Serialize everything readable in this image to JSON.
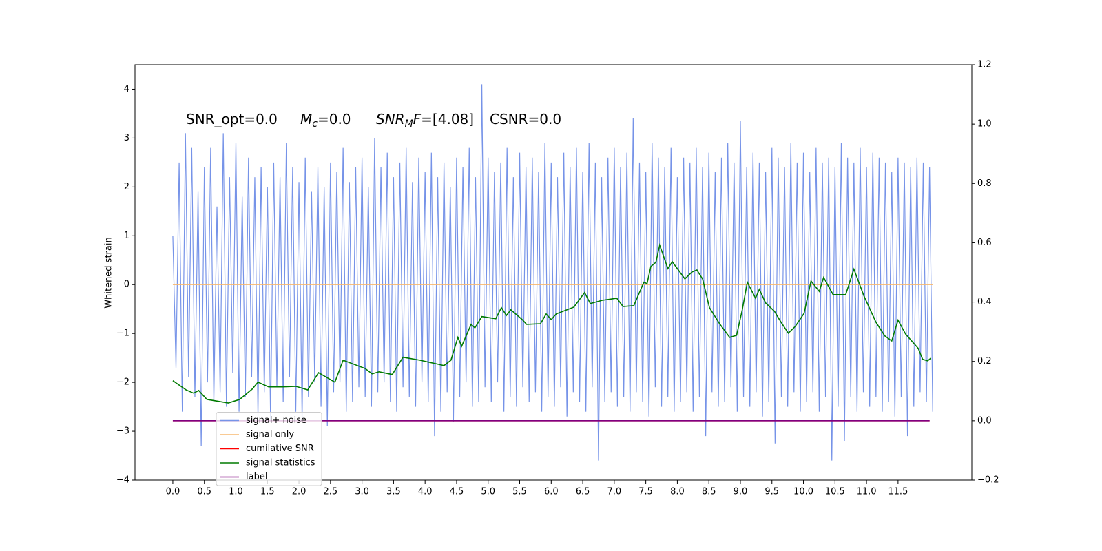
{
  "chart_data": {
    "type": "line",
    "ylabel": "Whitened strain",
    "annotations": [
      {
        "text": "SNR_opt=0.0"
      },
      {
        "italic": "M",
        "sub": "c",
        "text": "=0.0"
      },
      {
        "italic": "SNR",
        "sub": "M",
        "italic2": "F",
        "text": "=[4.08]"
      },
      {
        "text": "CSNR=0.0"
      }
    ],
    "xlim": [
      -0.6,
      12.67
    ],
    "ylim": [
      -4,
      4.5
    ],
    "y2lim": [
      -0.2,
      1.2
    ],
    "xticks": [
      {
        "value": 0,
        "label": "0.0"
      },
      0.5,
      {
        "value": 1,
        "label": "1.0"
      },
      1.5,
      {
        "value": 2,
        "label": "2.0"
      },
      2.5,
      {
        "value": 3,
        "label": "3.0"
      },
      3.5,
      {
        "value": 4,
        "label": "4.0"
      },
      4.5,
      {
        "value": 5,
        "label": "5.0"
      },
      5.5,
      {
        "value": 6,
        "label": "6.0"
      },
      6.5,
      {
        "value": 7,
        "label": "7.0"
      },
      7.5,
      {
        "value": 8,
        "label": "8.0"
      },
      8.5,
      {
        "value": 9,
        "label": "9.0"
      },
      9.5,
      {
        "value": 10,
        "label": "10.0"
      },
      10.5,
      {
        "value": 11,
        "label": "11.0"
      },
      11.5
    ],
    "yticks": [
      {
        "value": -4,
        "label": "−4"
      },
      {
        "value": -3,
        "label": "−3"
      },
      {
        "value": -2,
        "label": "−2"
      },
      {
        "value": -1,
        "label": "−1"
      },
      0,
      1,
      2,
      3,
      4
    ],
    "y2ticks": [
      {
        "value": -0.2,
        "label": "−0.2"
      },
      {
        "value": 0,
        "label": "0.0"
      },
      0.2,
      0.4,
      0.6,
      0.8,
      {
        "value": 1,
        "label": "1.0"
      },
      1.2
    ],
    "legend": "lower left",
    "series": [
      {
        "name": "signal+ noise",
        "color": "#7693e8",
        "x": [
          0,
          0.05,
          0.1,
          0.15,
          0.2,
          0.25,
          0.3,
          0.35,
          0.4,
          0.45,
          0.5,
          0.55,
          0.6,
          0.65,
          0.7,
          0.75,
          0.8,
          0.85,
          0.9,
          0.95,
          1,
          1.05,
          1.1,
          1.15,
          1.2,
          1.25,
          1.3,
          1.35,
          1.4,
          1.45,
          1.5,
          1.55,
          1.6,
          1.65,
          1.7,
          1.75,
          1.8,
          1.85,
          1.9,
          1.95,
          2,
          2.05,
          2.1,
          2.15,
          2.2,
          2.25,
          2.3,
          2.35,
          2.4,
          2.45,
          2.5,
          2.55,
          2.6,
          2.65,
          2.7,
          2.75,
          2.8,
          2.85,
          2.9,
          2.95,
          3,
          3.05,
          3.1,
          3.15,
          3.2,
          3.25,
          3.3,
          3.35,
          3.4,
          3.45,
          3.5,
          3.55,
          3.6,
          3.65,
          3.7,
          3.75,
          3.8,
          3.85,
          3.9,
          3.95,
          4,
          4.05,
          4.1,
          4.15,
          4.2,
          4.25,
          4.3,
          4.35,
          4.4,
          4.45,
          4.5,
          4.55,
          4.6,
          4.65,
          4.7,
          4.75,
          4.8,
          4.85,
          4.9,
          4.95,
          5,
          5.05,
          5.1,
          5.15,
          5.2,
          5.25,
          5.3,
          5.35,
          5.4,
          5.45,
          5.5,
          5.55,
          5.6,
          5.65,
          5.7,
          5.75,
          5.8,
          5.85,
          5.9,
          5.95,
          6,
          6.05,
          6.1,
          6.15,
          6.2,
          6.25,
          6.3,
          6.35,
          6.4,
          6.45,
          6.5,
          6.55,
          6.6,
          6.65,
          6.7,
          6.75,
          6.8,
          6.85,
          6.9,
          6.95,
          7,
          7.05,
          7.1,
          7.15,
          7.2,
          7.25,
          7.3,
          7.35,
          7.4,
          7.45,
          7.5,
          7.55,
          7.6,
          7.65,
          7.7,
          7.75,
          7.8,
          7.85,
          7.9,
          7.95,
          8,
          8.05,
          8.1,
          8.15,
          8.2,
          8.25,
          8.3,
          8.35,
          8.4,
          8.45,
          8.5,
          8.55,
          8.6,
          8.65,
          8.7,
          8.75,
          8.8,
          8.85,
          8.9,
          8.95,
          9,
          9.05,
          9.1,
          9.15,
          9.2,
          9.25,
          9.3,
          9.35,
          9.4,
          9.45,
          9.5,
          9.55,
          9.6,
          9.65,
          9.7,
          9.75,
          9.8,
          9.85,
          9.9,
          9.95,
          10,
          10.05,
          10.1,
          10.15,
          10.2,
          10.25,
          10.3,
          10.35,
          10.4,
          10.45,
          10.5,
          10.55,
          10.6,
          10.65,
          10.7,
          10.75,
          10.8,
          10.85,
          10.9,
          10.95,
          11,
          11.05,
          11.1,
          11.15,
          11.2,
          11.25,
          11.3,
          11.35,
          11.4,
          11.45,
          11.5,
          11.55,
          11.6,
          11.65,
          11.7,
          11.75,
          11.8,
          11.85,
          11.9,
          11.95,
          12,
          12.05
        ],
        "values": [
          1.0,
          -1.7,
          2.5,
          -2.6,
          3.1,
          -1.9,
          2.8,
          -2.3,
          1.9,
          -3.3,
          2.4,
          -2.0,
          2.8,
          -2.4,
          1.6,
          -2.2,
          3.1,
          -2.5,
          2.2,
          -1.8,
          2.9,
          -2.6,
          1.8,
          -2.3,
          2.6,
          -1.9,
          2.2,
          -2.7,
          2.4,
          -2.2,
          2.0,
          -2.8,
          2.5,
          -2.1,
          2.2,
          -2.4,
          2.9,
          -1.9,
          2.4,
          -2.6,
          2.1,
          -2.8,
          2.6,
          -2.3,
          1.9,
          -2.0,
          2.4,
          -2.5,
          2.0,
          -2.9,
          2.5,
          -2.2,
          2.3,
          -2.0,
          2.8,
          -2.6,
          2.1,
          -2.4,
          2.4,
          -2.1,
          2.6,
          -2.3,
          2.0,
          -2.5,
          3.0,
          -2.2,
          2.4,
          -2.0,
          2.7,
          -2.4,
          2.2,
          -2.6,
          2.5,
          -2.1,
          2.8,
          -2.3,
          2.1,
          -2.5,
          2.6,
          -2.0,
          2.3,
          -2.4,
          2.7,
          -3.1,
          2.2,
          -2.6,
          2.5,
          -2.2,
          2.0,
          -2.8,
          2.6,
          -2.3,
          2.4,
          -2.0,
          2.8,
          -2.5,
          2.2,
          -2.4,
          4.1,
          -2.1,
          2.6,
          -2.4,
          2.3,
          -2.0,
          2.5,
          -2.6,
          2.8,
          -2.3,
          2.2,
          -2.5,
          2.7,
          -2.1,
          2.4,
          -2.4,
          2.6,
          -2.2,
          2.3,
          -2.6,
          2.9,
          -2.3,
          2.5,
          -2.5,
          2.2,
          -2.1,
          2.7,
          -2.7,
          2.4,
          -2.2,
          2.8,
          -2.4,
          2.3,
          -2.6,
          2.9,
          -2.1,
          2.5,
          -3.6,
          2.2,
          -2.4,
          2.6,
          -2.2,
          2.8,
          -2.5,
          2.4,
          -2.3,
          2.7,
          -2.6,
          3.4,
          -2.2,
          2.5,
          -2.4,
          2.3,
          -2.7,
          2.9,
          -2.1,
          2.6,
          -2.5,
          2.4,
          -2.3,
          2.8,
          -2.6,
          2.2,
          -2.4,
          2.6,
          -2.2,
          2.5,
          -2.6,
          2.8,
          -2.3,
          2.4,
          -3.1,
          2.7,
          -2.2,
          2.3,
          -2.5,
          2.6,
          -2.4,
          2.9,
          -2.1,
          2.5,
          -2.6,
          3.35,
          -2.3,
          2.4,
          -2.5,
          2.7,
          -2.2,
          2.5,
          -2.7,
          2.3,
          -2.4,
          2.8,
          -3.25,
          2.6,
          -2.3,
          2.4,
          -2.5,
          2.9,
          -2.2,
          2.5,
          -2.6,
          2.7,
          -2.4,
          2.3,
          -2.2,
          2.8,
          -2.6,
          2.5,
          -2.3,
          2.6,
          -3.6,
          2.4,
          -2.5,
          2.9,
          -3.2,
          2.6,
          -2.3,
          2.5,
          -2.6,
          2.8,
          -2.2,
          2.4,
          -2.5,
          2.7,
          -2.3,
          2.6,
          -2.6,
          2.5,
          -2.4,
          2.3,
          -2.7,
          2.6,
          -2.3,
          2.5,
          -3.1,
          2.4,
          -2.5,
          2.6,
          -2.2,
          2.5,
          -2.4,
          2.4,
          -2.6
        ]
      },
      {
        "name": "signal only",
        "color": "#f7b870",
        "x": [
          0,
          12.05
        ],
        "values": [
          0,
          0
        ]
      },
      {
        "name": "cumilative SNR",
        "color": "#ff0000",
        "axis": "y2",
        "x": [
          0,
          12.0
        ],
        "values": [
          0,
          0
        ]
      },
      {
        "name": "signal statistics",
        "color": "#007a00",
        "axis": "y2",
        "x": [
          0,
          0.21,
          0.33,
          0.41,
          0.54,
          0.88,
          1.06,
          1.26,
          1.35,
          1.52,
          1.74,
          1.95,
          2.14,
          2.31,
          2.57,
          2.7,
          3.05,
          3.16,
          3.27,
          3.48,
          3.65,
          3.92,
          4.3,
          4.41,
          4.52,
          4.58,
          4.73,
          4.79,
          4.9,
          5.12,
          5.21,
          5.29,
          5.36,
          5.54,
          5.61,
          5.83,
          5.92,
          6.0,
          6.08,
          6.36,
          6.53,
          6.62,
          6.81,
          7.04,
          7.14,
          7.31,
          7.47,
          7.52,
          7.58,
          7.66,
          7.72,
          7.85,
          7.92,
          8.12,
          8.23,
          8.31,
          8.4,
          8.51,
          8.67,
          8.83,
          8.94,
          9.03,
          9.11,
          9.24,
          9.3,
          9.4,
          9.54,
          9.63,
          9.76,
          9.87,
          10.01,
          10.12,
          10.25,
          10.32,
          10.47,
          10.67,
          10.8,
          10.96,
          11.15,
          11.29,
          11.4,
          11.5,
          11.62,
          11.82,
          11.89,
          11.97,
          12.02
        ],
        "values": [
          0.135,
          0.104,
          0.093,
          0.102,
          0.072,
          0.06,
          0.072,
          0.107,
          0.13,
          0.114,
          0.114,
          0.116,
          0.104,
          0.162,
          0.13,
          0.204,
          0.176,
          0.158,
          0.165,
          0.156,
          0.214,
          0.204,
          0.186,
          0.204,
          0.281,
          0.251,
          0.325,
          0.313,
          0.351,
          0.344,
          0.381,
          0.355,
          0.374,
          0.341,
          0.325,
          0.327,
          0.36,
          0.341,
          0.36,
          0.383,
          0.432,
          0.395,
          0.406,
          0.413,
          0.385,
          0.388,
          0.467,
          0.462,
          0.52,
          0.534,
          0.592,
          0.513,
          0.536,
          0.478,
          0.501,
          0.508,
          0.478,
          0.381,
          0.327,
          0.281,
          0.288,
          0.374,
          0.467,
          0.413,
          0.443,
          0.397,
          0.369,
          0.337,
          0.295,
          0.318,
          0.362,
          0.471,
          0.436,
          0.483,
          0.425,
          0.425,
          0.511,
          0.42,
          0.332,
          0.286,
          0.269,
          0.339,
          0.292,
          0.244,
          0.207,
          0.202,
          0.211
        ]
      },
      {
        "name": "label",
        "color": "#800080",
        "axis": "y2",
        "x": [
          0,
          12.0
        ],
        "values": [
          0,
          0
        ]
      }
    ]
  }
}
